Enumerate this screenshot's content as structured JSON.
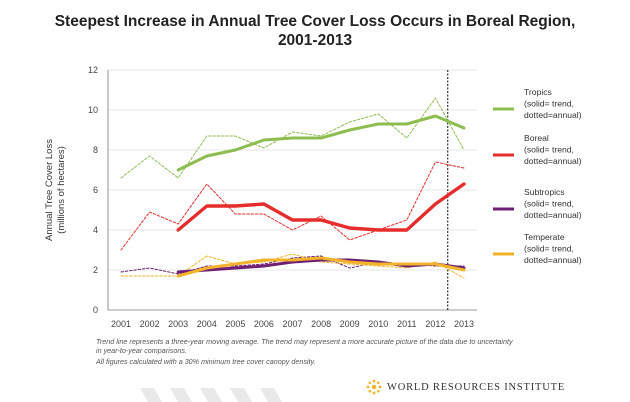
{
  "title_line1": "Steepest Increase in Annual Tree Cover Loss Occurs in Boreal Region,",
  "title_line2": "2001-2013",
  "notes": [
    "Trend line represents a three-year moving average. The trend may represent a more accurate picture of the data due to uncertainty",
    "in year-to-year comparisons.",
    "All figures calculated with a 30% minimum tree cover canopy density."
  ],
  "logo_text": "WORLD RESOURCES INSTITUTE",
  "logo_icon": "sunburst-icon",
  "colors": {
    "tropics": "#8dbd4f",
    "boreal": "#e52d2b",
    "subtropics": "#6e1f74",
    "temperate": "#f2b32a",
    "axis": "#777777",
    "grid": "#cccccc",
    "marker": "#333333"
  },
  "chart_data": {
    "type": "line",
    "title": "Steepest Increase in Annual Tree Cover Loss Occurs in Boreal Region, 2001-2013",
    "xlabel": "",
    "ylabel": "Annual Tree Cover Loss (millions of hectares)",
    "ylabel_lines": [
      "Annual Tree Cover Loss",
      "(millions of hectares)"
    ],
    "categories": [
      "2001",
      "2002",
      "2003",
      "2004",
      "2005",
      "2006",
      "2007",
      "2008",
      "2009",
      "2010",
      "2011",
      "2012",
      "2013"
    ],
    "ylim": [
      0,
      12
    ],
    "yticks": [
      "0",
      "2",
      "4",
      "6",
      "8",
      "10",
      "12"
    ],
    "vertical_marker_between": [
      "2012",
      "2013"
    ],
    "series": [
      {
        "key": "tropics_annual",
        "name": "Tropics annual",
        "style": "dotted",
        "color_key": "tropics",
        "values": [
          6.6,
          7.7,
          6.6,
          8.7,
          8.7,
          8.1,
          8.9,
          8.7,
          9.4,
          9.8,
          8.6,
          10.6,
          8.0
        ]
      },
      {
        "key": "tropics_trend",
        "name": "Tropics trend",
        "style": "solid",
        "color_key": "tropics",
        "values": [
          null,
          null,
          7.0,
          7.7,
          8.0,
          8.5,
          8.6,
          8.6,
          9.0,
          9.3,
          9.3,
          9.7,
          9.1
        ]
      },
      {
        "key": "boreal_annual",
        "name": "Boreal annual",
        "style": "dotted",
        "color_key": "boreal",
        "values": [
          3.0,
          4.9,
          4.3,
          6.3,
          4.8,
          4.8,
          4.0,
          4.7,
          3.5,
          4.0,
          4.5,
          7.4,
          7.1
        ]
      },
      {
        "key": "boreal_trend",
        "name": "Boreal trend",
        "style": "solid",
        "color_key": "boreal",
        "values": [
          null,
          null,
          4.0,
          5.2,
          5.2,
          5.3,
          4.5,
          4.5,
          4.1,
          4.0,
          4.0,
          5.3,
          6.3
        ]
      },
      {
        "key": "subtropics_annual",
        "name": "Subtropics annual",
        "style": "dotted",
        "color_key": "subtropics",
        "values": [
          1.9,
          2.1,
          1.8,
          2.2,
          2.2,
          2.3,
          2.6,
          2.7,
          2.1,
          2.4,
          2.3,
          2.2,
          2.2
        ]
      },
      {
        "key": "subtropics_trend",
        "name": "Subtropics trend",
        "style": "solid",
        "color_key": "subtropics",
        "values": [
          null,
          null,
          1.9,
          2.0,
          2.1,
          2.2,
          2.4,
          2.5,
          2.5,
          2.4,
          2.2,
          2.3,
          2.1
        ]
      },
      {
        "key": "temperate_annual",
        "name": "Temperate annual",
        "style": "dotted",
        "color_key": "temperate",
        "values": [
          1.7,
          1.7,
          1.7,
          2.7,
          2.3,
          2.4,
          2.8,
          2.4,
          2.3,
          2.2,
          2.1,
          2.4,
          1.6
        ]
      },
      {
        "key": "temperate_trend",
        "name": "Temperate trend",
        "style": "solid",
        "color_key": "temperate",
        "values": [
          null,
          null,
          1.7,
          2.1,
          2.3,
          2.5,
          2.5,
          2.6,
          2.4,
          2.3,
          2.3,
          2.3,
          2.0
        ]
      }
    ],
    "legend": [
      {
        "color_key": "tropics",
        "lines": [
          "Tropics",
          "(solid= trend,",
          "dotted=annual)"
        ]
      },
      {
        "color_key": "boreal",
        "lines": [
          "Boreal",
          "(solid= trend,",
          "dotted=annual)"
        ]
      },
      {
        "color_key": "subtropics",
        "lines": [
          "Subtropics",
          "(solid= trend,",
          "dotted=annual)"
        ]
      },
      {
        "color_key": "temperate",
        "lines": [
          "Temperate",
          "(solid= trend,",
          "dotted=annual)"
        ]
      }
    ],
    "legend_position": "right"
  }
}
